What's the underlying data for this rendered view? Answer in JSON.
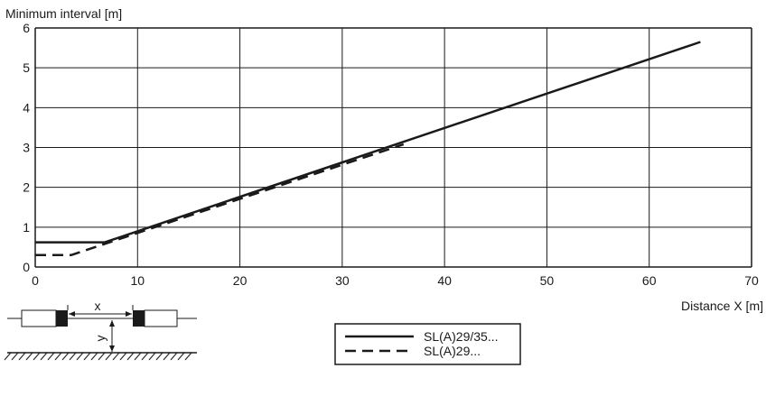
{
  "chart_data": {
    "type": "line",
    "ylabel": "Minimum interval [m]",
    "xlabel": "Distance X [m]",
    "xlim": [
      0,
      70
    ],
    "ylim": [
      0,
      6
    ],
    "xticks": [
      0,
      10,
      20,
      30,
      40,
      50,
      60,
      70
    ],
    "yticks": [
      0,
      1,
      2,
      3,
      4,
      5,
      6
    ],
    "grid": true,
    "legend_position": "bottom-center",
    "series": [
      {
        "name": "SL(A)29/35...",
        "style": "solid",
        "color": "#1a1a1a",
        "x": [
          0,
          6.8,
          65
        ],
        "y": [
          0.62,
          0.62,
          5.65
        ]
      },
      {
        "name": "SL(A)29...",
        "style": "dashed",
        "color": "#1a1a1a",
        "x": [
          0,
          3.5,
          36
        ],
        "y": [
          0.3,
          0.3,
          3.08
        ]
      }
    ]
  },
  "diagram": {
    "x_label": "x",
    "y_label": "y"
  }
}
